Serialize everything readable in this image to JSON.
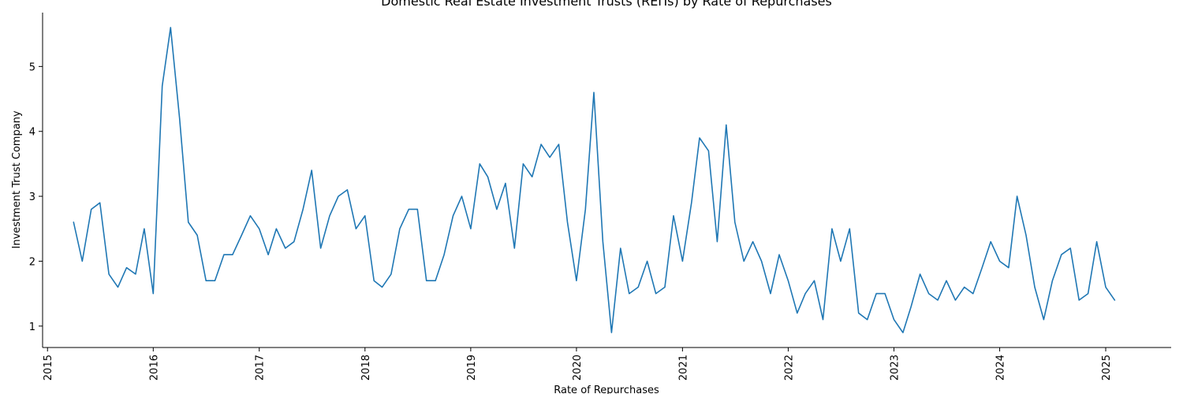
{
  "chart_data": {
    "type": "line",
    "title": "Domestic Real Estate Investment Trusts (REITs) by Rate of Repurchases",
    "xlabel": "Rate of Repurchases",
    "ylabel": "Investment Trust Company",
    "x_ticks": [
      "2015",
      "2016",
      "2017",
      "2018",
      "2019",
      "2020",
      "2021",
      "2022",
      "2023",
      "2024",
      "2025"
    ],
    "y_ticks": [
      "1",
      "2",
      "3",
      "4",
      "5"
    ],
    "xlim": [
      "2014-12-15",
      "2025-08-15"
    ],
    "ylim": [
      0.67,
      5.83
    ],
    "grid": false,
    "line_color": "#1f77b4",
    "series": [
      {
        "x": [
          "2015-04-01",
          "2015-05-01",
          "2015-06-01",
          "2015-07-01",
          "2015-08-01",
          "2015-09-01",
          "2015-10-01",
          "2015-11-01",
          "2015-12-01",
          "2016-01-01",
          "2016-02-01",
          "2016-03-01",
          "2016-04-01",
          "2016-05-01",
          "2016-06-01",
          "2016-07-01",
          "2016-08-01",
          "2016-09-01",
          "2016-10-01",
          "2016-11-01",
          "2016-12-01",
          "2017-01-01",
          "2017-02-01",
          "2017-03-01",
          "2017-04-01",
          "2017-05-01",
          "2017-06-01",
          "2017-07-01",
          "2017-08-01",
          "2017-09-01",
          "2017-10-01",
          "2017-11-01",
          "2017-12-01",
          "2018-01-01",
          "2018-02-01",
          "2018-03-01",
          "2018-04-01",
          "2018-05-01",
          "2018-06-01",
          "2018-07-01",
          "2018-08-01",
          "2018-09-01",
          "2018-10-01",
          "2018-11-01",
          "2018-12-01",
          "2019-01-01",
          "2019-02-01",
          "2019-03-01",
          "2019-04-01",
          "2019-05-01",
          "2019-06-01",
          "2019-07-01",
          "2019-08-01",
          "2019-09-01",
          "2019-10-01",
          "2019-11-01",
          "2019-12-01",
          "2020-01-01",
          "2020-02-01",
          "2020-03-01",
          "2020-04-01",
          "2020-05-01",
          "2020-06-01",
          "2020-07-01",
          "2020-08-01",
          "2020-09-01",
          "2020-10-01",
          "2020-11-01",
          "2020-12-01",
          "2021-01-01",
          "2021-02-01",
          "2021-03-01",
          "2021-04-01",
          "2021-05-01",
          "2021-06-01",
          "2021-07-01",
          "2021-08-01",
          "2021-09-01",
          "2021-10-01",
          "2021-11-01",
          "2021-12-01",
          "2022-01-01",
          "2022-02-01",
          "2022-03-01",
          "2022-04-01",
          "2022-05-01",
          "2022-06-01",
          "2022-07-01",
          "2022-08-01",
          "2022-09-01",
          "2022-10-01",
          "2022-11-01",
          "2022-12-01",
          "2023-01-01",
          "2023-02-01",
          "2023-03-01",
          "2023-04-01",
          "2023-05-01",
          "2023-06-01",
          "2023-07-01",
          "2023-08-01",
          "2023-09-01",
          "2023-10-01",
          "2023-11-01",
          "2023-12-01",
          "2024-01-01",
          "2024-02-01",
          "2024-03-01",
          "2024-04-01",
          "2024-05-01",
          "2024-06-01",
          "2024-07-01",
          "2024-08-01",
          "2024-09-01",
          "2024-10-01",
          "2024-11-01",
          "2024-12-01",
          "2025-01-01",
          "2025-02-01"
        ],
        "values": [
          2.6,
          2.0,
          2.8,
          2.9,
          1.8,
          1.6,
          1.9,
          1.8,
          2.5,
          1.5,
          4.7,
          5.6,
          4.2,
          2.6,
          2.4,
          1.7,
          1.7,
          2.1,
          2.1,
          2.4,
          2.7,
          2.5,
          2.1,
          2.5,
          2.2,
          2.3,
          2.8,
          3.4,
          2.2,
          2.7,
          3.0,
          3.1,
          2.5,
          2.7,
          1.7,
          1.6,
          1.8,
          2.5,
          2.8,
          2.8,
          1.7,
          1.7,
          2.1,
          2.7,
          3.0,
          2.5,
          3.5,
          3.3,
          2.8,
          3.2,
          2.2,
          3.5,
          3.3,
          3.8,
          3.6,
          3.8,
          2.6,
          1.7,
          2.8,
          4.6,
          2.3,
          0.9,
          2.2,
          1.5,
          1.6,
          2.0,
          1.5,
          1.6,
          2.7,
          2.0,
          2.9,
          3.9,
          3.7,
          2.3,
          4.1,
          2.6,
          2.0,
          2.3,
          2.0,
          1.5,
          2.1,
          1.7,
          1.2,
          1.5,
          1.7,
          1.1,
          2.5,
          2.0,
          2.5,
          1.2,
          1.1,
          1.5,
          1.5,
          1.1,
          0.9,
          1.3,
          1.8,
          1.5,
          1.4,
          1.7,
          1.4,
          1.6,
          1.5,
          1.9,
          2.3,
          2.0,
          1.9,
          3.0,
          2.4,
          1.6,
          1.1,
          1.7,
          2.1,
          2.2,
          1.4,
          1.5,
          2.3,
          1.6,
          1.4
        ]
      }
    ]
  }
}
